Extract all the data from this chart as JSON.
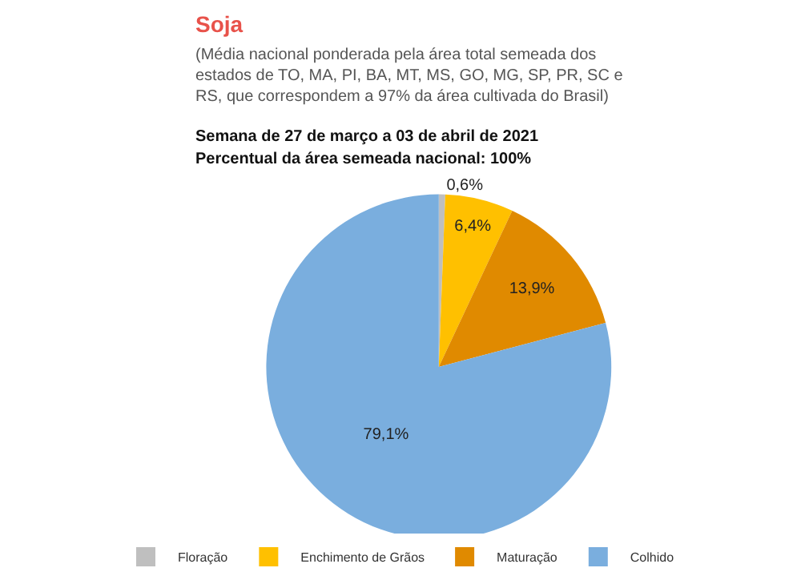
{
  "chart_data": {
    "type": "pie",
    "title": "Soja",
    "subtitle": "(Média nacional ponderada pela área total semeada dos estados de TO, MA, PI, BA, MT, MS, GO, MG, SP, PR, SC e RS, que correspondem a 97% da área cultivada do Brasil)",
    "annotations": [
      "Semana de 27 de março a 03 de abril de 2021",
      "Percentual da área semeada nacional: 100%"
    ],
    "categories": [
      "Floração",
      "Enchimento de Grãos",
      "Maturação",
      "Colhido"
    ],
    "values": [
      0.6,
      6.4,
      13.9,
      79.1
    ],
    "value_labels": [
      "0,6%",
      "6,4%",
      "13,9%",
      "79,1%"
    ],
    "colors": [
      "#bfbfbf",
      "#ffc000",
      "#e08a00",
      "#7aaede"
    ],
    "legend": "bottom"
  }
}
